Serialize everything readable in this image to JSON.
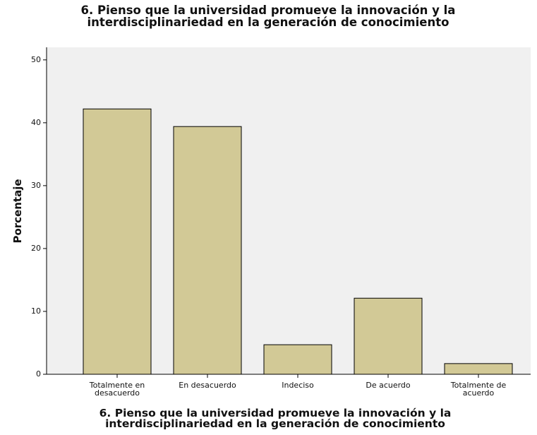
{
  "chart_data": {
    "type": "bar",
    "title": "6. Pienso que la universidad promueve la innovación y la interdisciplinariedad en la generación de conocimiento",
    "x_label": "6. Pienso que la universidad promueve la innovación y la interdisciplinariedad en la generación de conocimiento",
    "y_label": "Porcentaje",
    "categories": [
      "Totalmente en desacuerdo",
      "En desacuerdo",
      "Indeciso",
      "De acuerdo",
      "Totalmente de acuerdo"
    ],
    "values": [
      42.2,
      39.4,
      4.7,
      12.1,
      1.7
    ],
    "color": "#d2c996",
    "ylim": [
      0,
      52
    ],
    "yticks": [
      0,
      10,
      20,
      30,
      40,
      50
    ],
    "grid": false
  }
}
